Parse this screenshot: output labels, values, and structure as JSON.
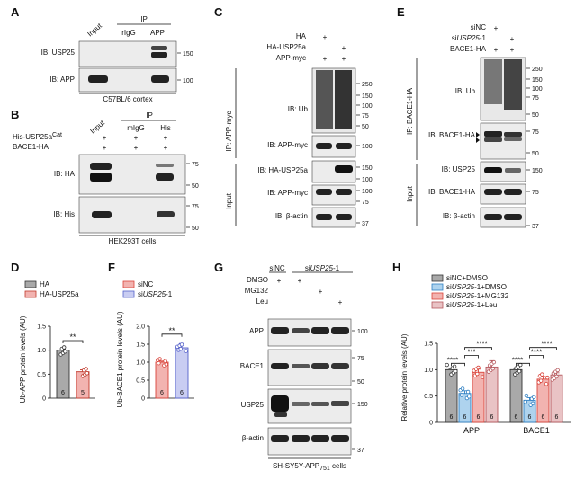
{
  "panels": {
    "A": {
      "letter": "A",
      "lanes": [
        "Input",
        "rIgG",
        "APP"
      ],
      "ip": "IP",
      "blots": [
        {
          "label": "IB: USP25",
          "mw": [
            "150"
          ]
        },
        {
          "label": "IB: APP",
          "mw": [
            "100"
          ]
        }
      ],
      "footer": "C57BL/6 cortex"
    },
    "B": {
      "letter": "B",
      "lanes": [
        "Input",
        "mIgG",
        "His"
      ],
      "ip": "IP",
      "rows": [
        {
          "label": "His-USP25a",
          "sup": "Cat",
          "marks": [
            "+",
            "+",
            "+"
          ]
        },
        {
          "label": "BACE1-HA",
          "sup": "",
          "marks": [
            "+",
            "+",
            "+"
          ]
        }
      ],
      "blots": [
        {
          "label": "IB: HA",
          "mw": [
            "75",
            "50"
          ]
        },
        {
          "label": "IB: His",
          "mw": [
            "75",
            "50"
          ]
        }
      ],
      "footer": "HEK293T cells"
    },
    "C": {
      "letter": "C",
      "rows": [
        {
          "label": "HA",
          "marks": [
            "+",
            ""
          ]
        },
        {
          "label": "HA-USP25a",
          "marks": [
            "",
            "+"
          ]
        },
        {
          "label": "APP-myc",
          "marks": [
            "+",
            "+"
          ]
        }
      ],
      "side_ip": "IP: APP-myc",
      "side_input": "Input",
      "blots": [
        {
          "label": "IB: Ub",
          "mw": [
            "250",
            "150",
            "100",
            "75",
            "50"
          ]
        },
        {
          "label": "IB: APP-myc",
          "mw": [
            "100"
          ]
        },
        {
          "label": "IB: HA-USP25a",
          "mw": [
            "150",
            "100"
          ]
        },
        {
          "label": "IB: APP-myc",
          "mw": [
            "100",
            "75"
          ]
        },
        {
          "label": "IB: β-actin",
          "mw": [
            "37"
          ]
        }
      ]
    },
    "E": {
      "letter": "E",
      "rows": [
        {
          "label": "siNC",
          "italic": "",
          "suffix": "",
          "marks": [
            "+",
            ""
          ]
        },
        {
          "label": "si",
          "italic": "USP25",
          "suffix": "-1",
          "marks": [
            "",
            "+"
          ]
        },
        {
          "label": "BACE1-HA",
          "italic": "",
          "suffix": "",
          "marks": [
            "+",
            "+"
          ]
        }
      ],
      "side_ip": "IP: BACE1-HA",
      "side_input": "Input",
      "blots": [
        {
          "label": "IB: Ub",
          "mw": [
            "250",
            "150",
            "100",
            "75",
            "50"
          ]
        },
        {
          "label": "IB: BACE1-HA",
          "mw": [
            "75",
            "50"
          ]
        },
        {
          "label": "IB: USP25",
          "mw": [
            "150"
          ]
        },
        {
          "label": "IB: BACE1-HA",
          "mw": [
            "75"
          ]
        },
        {
          "label": "IB: β-actin",
          "mw": [
            "37"
          ]
        }
      ]
    },
    "G": {
      "letter": "G",
      "header_left": "siNC",
      "header_right_prefix": "si",
      "header_right_italic": "USP25",
      "header_right_suffix": "-1",
      "rows": [
        {
          "label": "DMSO",
          "marks": [
            "+",
            "+",
            "",
            ""
          ]
        },
        {
          "label": "MG132",
          "marks": [
            "",
            "",
            "+",
            ""
          ]
        },
        {
          "label": "Leu",
          "marks": [
            "",
            "",
            "",
            "+"
          ]
        }
      ],
      "blots": [
        {
          "label": "APP",
          "mw": [
            "100"
          ]
        },
        {
          "label": "BACE1",
          "mw": [
            "75",
            "50"
          ]
        },
        {
          "label": "USP25",
          "mw": [
            "150"
          ]
        },
        {
          "label": "β-actin",
          "mw": [
            "37"
          ]
        }
      ],
      "footer_prefix": "SH-SY5Y-APP",
      "footer_sub": "751",
      "footer_suffix": " cells"
    }
  },
  "chart_data": [
    {
      "panel": "D",
      "type": "bar",
      "legend": [
        "HA",
        "HA-USP25a"
      ],
      "colors": [
        "#a9a9a9",
        "#f2b3b0"
      ],
      "edge_colors": [
        "#333333",
        "#c0392b"
      ],
      "categories": [
        "HA",
        "HA-USP25a"
      ],
      "values": [
        1.0,
        0.55
      ],
      "errors": [
        0.02,
        0.04
      ],
      "n": [
        "6",
        "5"
      ],
      "ylabel": "Ub-APP protein levels (AU)",
      "ylim": [
        0,
        1.5
      ],
      "yticks": [
        "0",
        "0.5",
        "1.0",
        "1.5"
      ],
      "significance": [
        {
          "pair": [
            0,
            1
          ],
          "label": "**"
        }
      ]
    },
    {
      "panel": "F",
      "type": "bar",
      "legend": [
        "siNC",
        "siUSP25-1"
      ],
      "legend_parts": [
        [
          "siNC",
          ""
        ],
        [
          "si",
          "USP25",
          "-1"
        ]
      ],
      "colors": [
        "#f2b3b0",
        "#c9cdf2"
      ],
      "edge_colors": [
        "#d9433a",
        "#5561c9"
      ],
      "categories": [
        "siNC",
        "siUSP25-1"
      ],
      "values": [
        1.0,
        1.4
      ],
      "errors": [
        0.03,
        0.12
      ],
      "n": [
        "6",
        "6"
      ],
      "ylabel": "Ub-BACE1 protein levels (AU)",
      "ylim": [
        0,
        2.0
      ],
      "yticks": [
        "0",
        "0.5",
        "1.0",
        "1.5",
        "2.0"
      ],
      "significance": [
        {
          "pair": [
            0,
            1
          ],
          "label": "**"
        }
      ]
    },
    {
      "panel": "H",
      "type": "bar",
      "legend": [
        "siNC+DMSO",
        "siUSP25-1+DMSO",
        "siUSP25-1+MG132",
        "siUSP25-1+Leu"
      ],
      "legend_parts": [
        [
          "siNC+DMSO"
        ],
        [
          "si",
          "USP25",
          "-1+DMSO"
        ],
        [
          "si",
          "USP25",
          "-1+MG132"
        ],
        [
          "si",
          "USP25",
          "-1+Leu"
        ]
      ],
      "colors": [
        "#a9a9a9",
        "#aed3ee",
        "#f2b3b0",
        "#e9c3c5"
      ],
      "edge_colors": [
        "#333333",
        "#2e7fc2",
        "#d9433a",
        "#b5585d"
      ],
      "categories": [
        "APP",
        "BACE1"
      ],
      "series": [
        {
          "name": "siNC+DMSO",
          "values": [
            1.0,
            1.0
          ],
          "errors": [
            0.02,
            0.02
          ]
        },
        {
          "name": "siUSP25-1+DMSO",
          "values": [
            0.55,
            0.42
          ],
          "errors": [
            0.05,
            0.05
          ]
        },
        {
          "name": "siUSP25-1+MG132",
          "values": [
            0.95,
            0.82
          ],
          "errors": [
            0.06,
            0.05
          ]
        },
        {
          "name": "siUSP25-1+Leu",
          "values": [
            1.05,
            0.9
          ],
          "errors": [
            0.12,
            0.04
          ]
        }
      ],
      "n": [
        "6",
        "6",
        "6",
        "6"
      ],
      "ylabel": "Relative protein levels (AU)",
      "ylim": [
        0,
        1.5
      ],
      "yticks": [
        "0",
        "0.5",
        "1.0",
        "1.5"
      ],
      "significance_label": "****",
      "significance_label2": "***"
    }
  ]
}
